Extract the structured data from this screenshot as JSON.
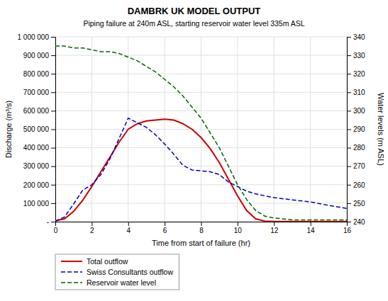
{
  "chart_data": {
    "type": "line",
    "title": "DAMBRK UK MODEL OUTPUT",
    "subtitle": "Piping failure at 240m ASL, starting reservoir water level 335m ASL",
    "x_label": "Time from start of failure (hr)",
    "y_label": "Discharge (m³/s)",
    "y2_label": "Water levels (m ASL)",
    "xlim": [
      0,
      16
    ],
    "ylim": [
      0,
      1000000
    ],
    "y2lim": [
      240,
      340
    ],
    "xticks": [
      0,
      2,
      4,
      6,
      8,
      10,
      12,
      14,
      16
    ],
    "yticks": [
      {
        "value": 0,
        "label": "-"
      },
      {
        "value": 100000,
        "label": "100 000"
      },
      {
        "value": 200000,
        "label": "200 000"
      },
      {
        "value": 300000,
        "label": "300 000"
      },
      {
        "value": 400000,
        "label": "400 000"
      },
      {
        "value": 500000,
        "label": "500 000"
      },
      {
        "value": 600000,
        "label": "600 000"
      },
      {
        "value": 700000,
        "label": "700 000"
      },
      {
        "value": 800000,
        "label": "800 000"
      },
      {
        "value": 900000,
        "label": "900 000"
      },
      {
        "value": 1000000,
        "label": "1 000 000"
      }
    ],
    "y2ticks": [
      240,
      250,
      260,
      270,
      280,
      290,
      300,
      310,
      320,
      330,
      340
    ],
    "grid": true,
    "legend": "bottom",
    "series": [
      {
        "name": "Total outflow",
        "color": "#cc0000",
        "line_style": "solid",
        "axis": "y",
        "x": [
          0,
          0.5,
          1.0,
          1.5,
          2.0,
          2.5,
          3.0,
          3.5,
          4.0,
          4.5,
          5.0,
          5.5,
          6.0,
          6.5,
          7.0,
          7.5,
          8.0,
          8.5,
          9.0,
          9.5,
          10.0,
          10.5,
          11.0,
          11.5,
          12.0,
          14.0,
          16.0
        ],
        "values": [
          5000,
          15000,
          55000,
          115000,
          190000,
          270000,
          350000,
          430000,
          500000,
          530000,
          545000,
          550000,
          555000,
          550000,
          530000,
          500000,
          455000,
          395000,
          320000,
          230000,
          140000,
          60000,
          15000,
          3000,
          1000,
          1000,
          1000
        ]
      },
      {
        "name": "Swiss Consultants outflow",
        "color": "#0000bb",
        "line_style": "dashed",
        "axis": "y",
        "x": [
          0,
          0.5,
          1.0,
          1.5,
          2.0,
          2.5,
          3.0,
          3.5,
          4.0,
          4.5,
          5.0,
          5.5,
          6.0,
          6.5,
          7.0,
          7.5,
          8.0,
          8.5,
          9.0,
          9.5,
          10.0,
          10.5,
          11.0,
          11.5,
          12.0,
          13.0,
          14.0,
          15.0,
          16.0
        ],
        "values": [
          3000,
          25000,
          95000,
          170000,
          200000,
          255000,
          340000,
          450000,
          560000,
          535000,
          510000,
          470000,
          420000,
          365000,
          305000,
          280000,
          275000,
          270000,
          255000,
          215000,
          190000,
          165000,
          150000,
          140000,
          130000,
          118000,
          107000,
          88000,
          72000
        ]
      },
      {
        "name": "Reservoir water level",
        "color": "#006600",
        "line_style": "dashed",
        "axis": "y2",
        "x": [
          0,
          0.5,
          1.0,
          1.5,
          2.0,
          2.5,
          3.0,
          3.5,
          4.0,
          4.5,
          5.0,
          5.5,
          6.0,
          6.5,
          7.0,
          7.5,
          8.0,
          8.5,
          9.0,
          9.5,
          10.0,
          10.5,
          11.0,
          11.5,
          12.0,
          13.0,
          14.0,
          15.0,
          16.0
        ],
        "values": [
          335,
          335,
          334,
          334,
          333,
          332,
          332,
          331,
          329,
          327,
          324,
          321,
          317,
          313,
          308,
          302,
          296,
          288,
          280,
          270,
          260,
          252,
          246,
          243,
          242,
          241,
          241,
          241,
          241
        ]
      }
    ]
  }
}
